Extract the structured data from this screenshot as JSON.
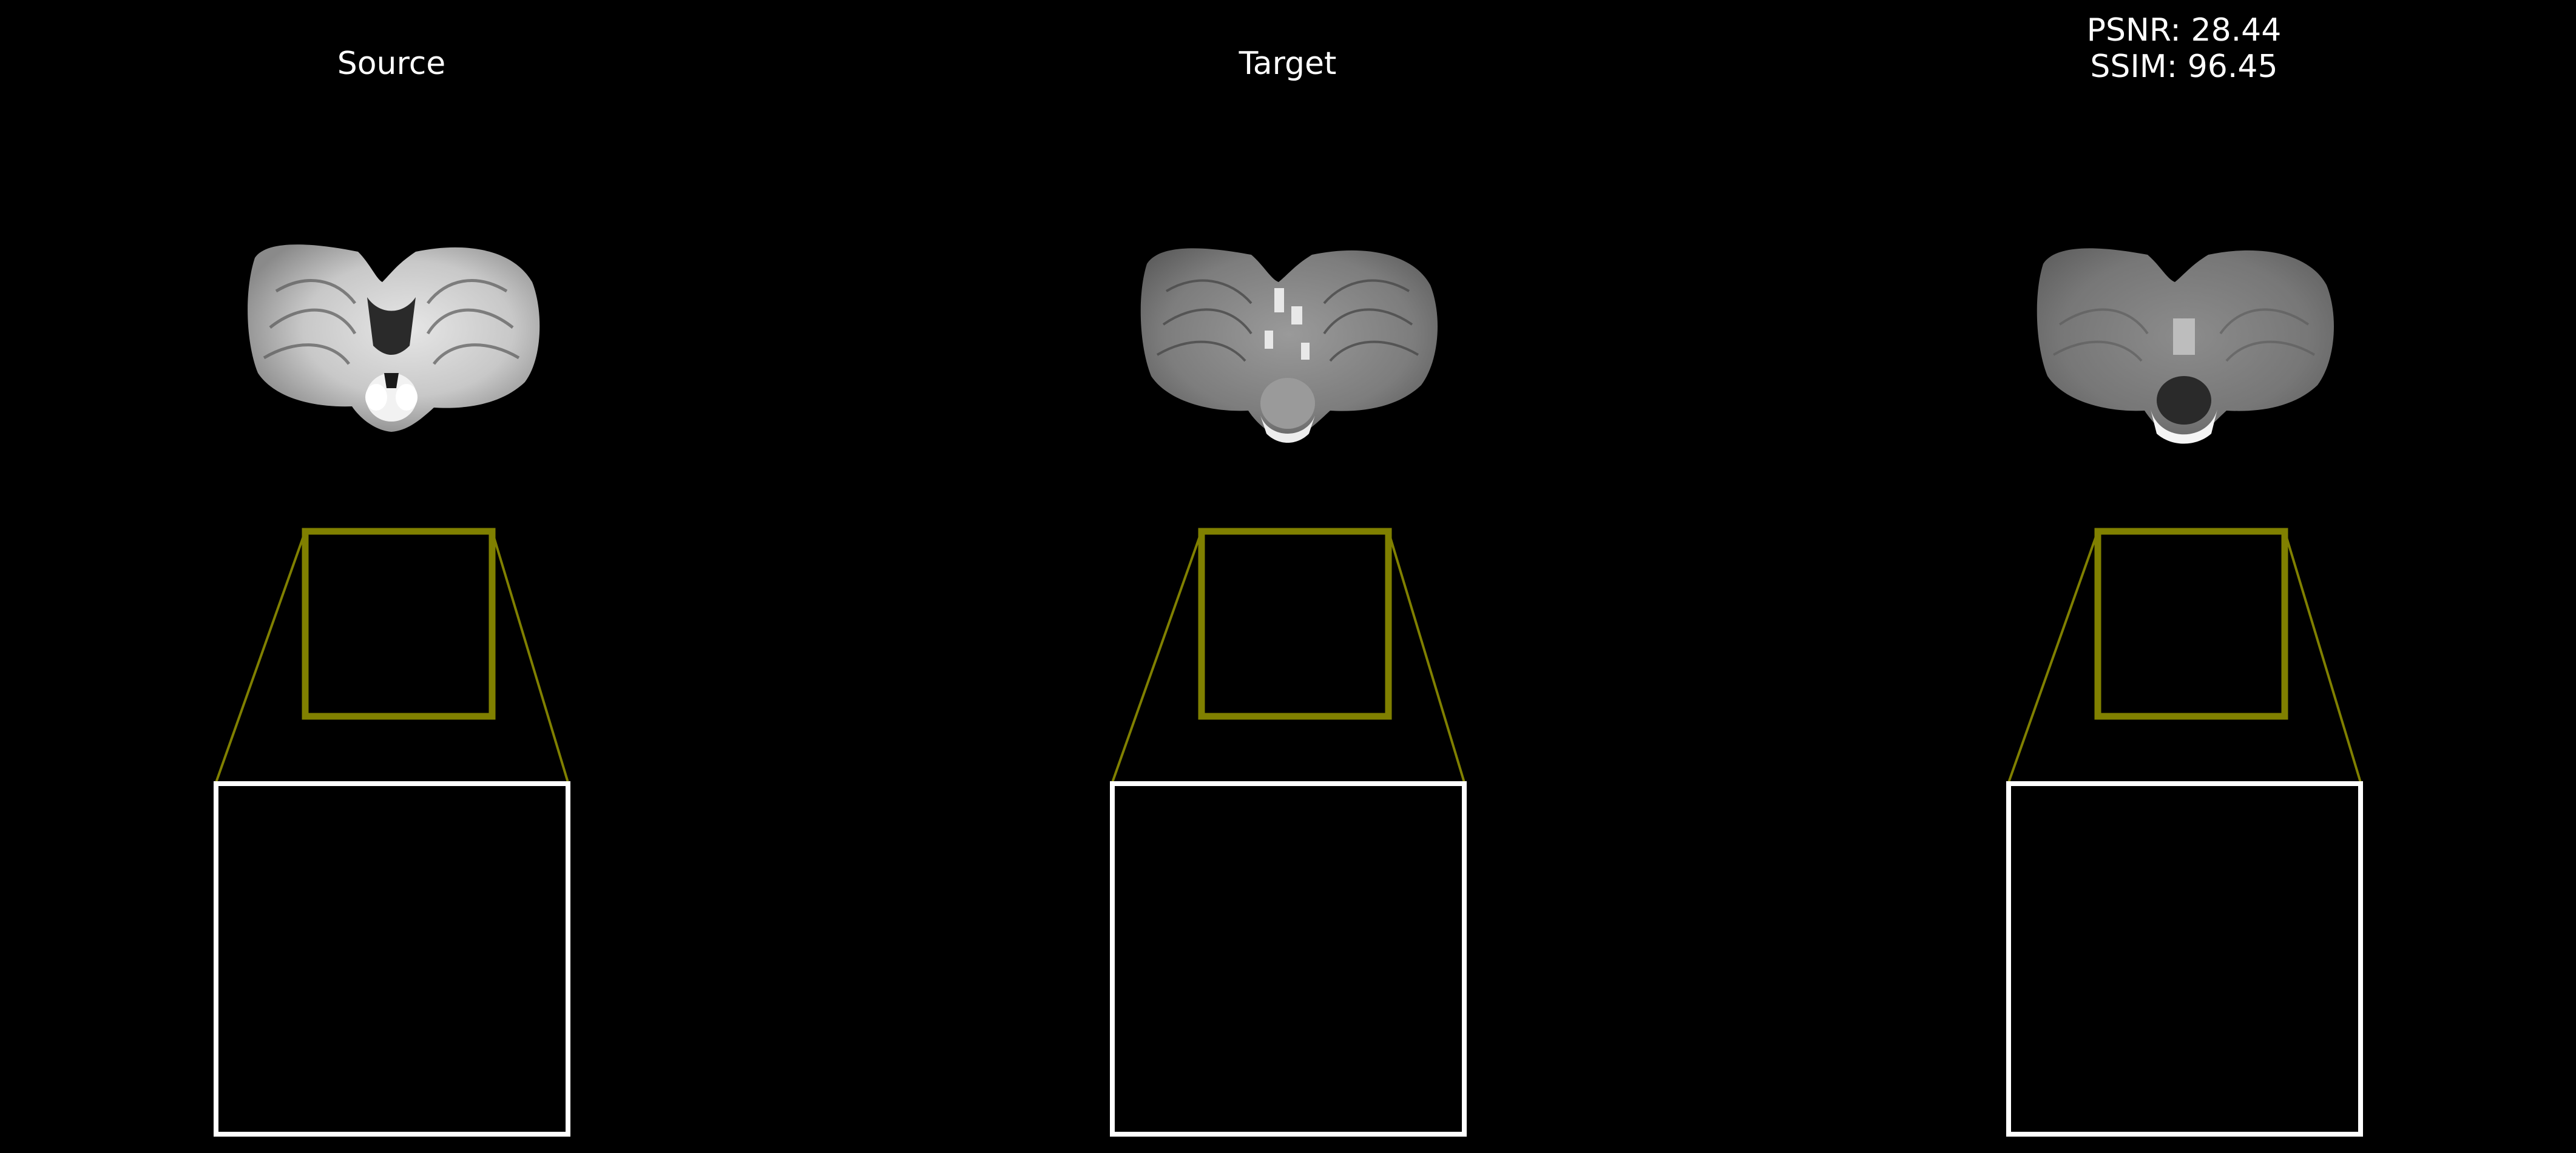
{
  "panels": {
    "source": {
      "title": "Source"
    },
    "target": {
      "title": "Target"
    },
    "result": {
      "psnr_label": "PSNR: 28.44",
      "ssim_label": "SSIM: 96.45"
    }
  },
  "colors": {
    "background": "#000000",
    "roi_box": "#808000",
    "zoom_box": "#ffffff",
    "text": "#ffffff"
  }
}
